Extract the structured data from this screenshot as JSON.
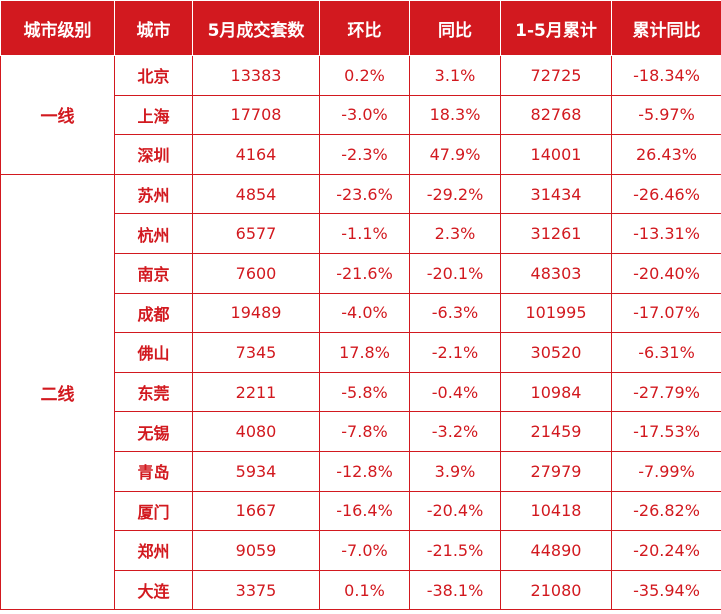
{
  "headers": [
    "城市级别",
    "城市",
    "5月成交套数",
    "环比",
    "同比",
    "1-5月累计",
    "累计同比"
  ],
  "tiers": [
    "一线",
    "二线"
  ],
  "rows": [
    [
      "北京",
      "13383",
      "0.2%",
      "3.1%",
      "72725",
      "-18.34%"
    ],
    [
      "上海",
      "17708",
      "-3.0%",
      "18.3%",
      "82768",
      "-5.97%"
    ],
    [
      "深圳",
      "4164",
      "-2.3%",
      "47.9%",
      "14001",
      "26.43%"
    ],
    [
      "苏州",
      "4854",
      "-23.6%",
      "-29.2%",
      "31434",
      "-26.46%"
    ],
    [
      "杭州",
      "6577",
      "-1.1%",
      "2.3%",
      "31261",
      "-13.31%"
    ],
    [
      "南京",
      "7600",
      "-21.6%",
      "-20.1%",
      "48303",
      "-20.40%"
    ],
    [
      "成都",
      "19489",
      "-4.0%",
      "-6.3%",
      "101995",
      "-17.07%"
    ],
    [
      "佛山",
      "7345",
      "17.8%",
      "-2.1%",
      "30520",
      "-6.31%"
    ],
    [
      "东莞",
      "2211",
      "-5.8%",
      "-0.4%",
      "10984",
      "-27.79%"
    ],
    [
      "无锡",
      "4080",
      "-7.8%",
      "-3.2%",
      "21459",
      "-17.53%"
    ],
    [
      "青岛",
      "5934",
      "-12.8%",
      "3.9%",
      "27979",
      "-7.99%"
    ],
    [
      "厦门",
      "1667",
      "-16.4%",
      "-20.4%",
      "10418",
      "-26.82%"
    ],
    [
      "郑州",
      "9059",
      "-7.0%",
      "-21.5%",
      "44890",
      "-20.24%"
    ],
    [
      "大连",
      "3375",
      "0.1%",
      "-38.1%",
      "21080",
      "-35.94%"
    ]
  ],
  "colors": {
    "header_bg": "#d2191f",
    "text": "#d2191f",
    "border": "#d2191f"
  }
}
